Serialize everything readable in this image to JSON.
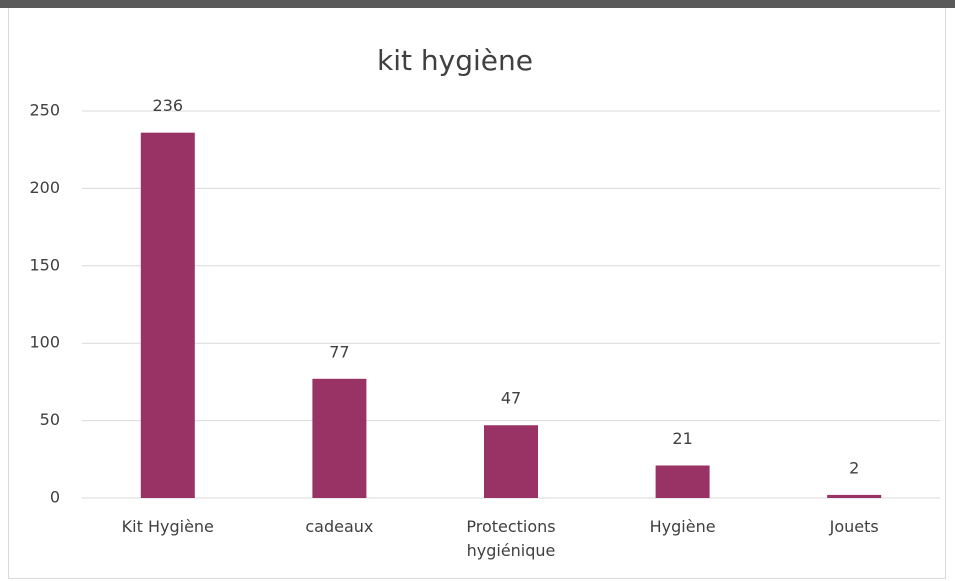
{
  "chart_data": {
    "type": "bar",
    "title": "kit hygiène",
    "categories": [
      "Kit Hygiène",
      "cadeaux",
      "Protections hygiénique",
      "Hygiène",
      "Jouets"
    ],
    "values": [
      236,
      77,
      47,
      21,
      2
    ],
    "color": "#993366",
    "ylim": [
      0,
      250
    ],
    "yticks": [
      0,
      50,
      100,
      150,
      200,
      250
    ],
    "grid": true
  }
}
